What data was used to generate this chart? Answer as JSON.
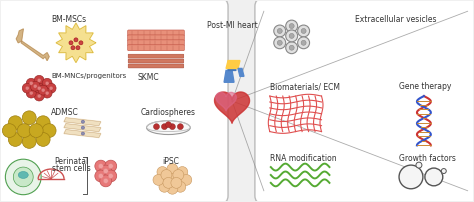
{
  "background_color": "#f0f0f0",
  "left_box_color": "#ffffff",
  "right_box_color": "#ffffff",
  "left_labels": [
    "BM-MSCs",
    "SKMC",
    "BM-MNCs/progenitors",
    "ADMSC",
    "Cardiospheres",
    "Perinatal\nstem cells",
    "iPSC"
  ],
  "right_labels": [
    "Extracellular vesicles",
    "Biomaterials/ ECM",
    "Gene therapy",
    "RNA modification",
    "Growth factors"
  ],
  "center_label": "Post-MI heart",
  "box_edge_color": "#bbbbbb",
  "text_color": "#333333",
  "figsize": [
    4.74,
    2.02
  ],
  "dpi": 100
}
